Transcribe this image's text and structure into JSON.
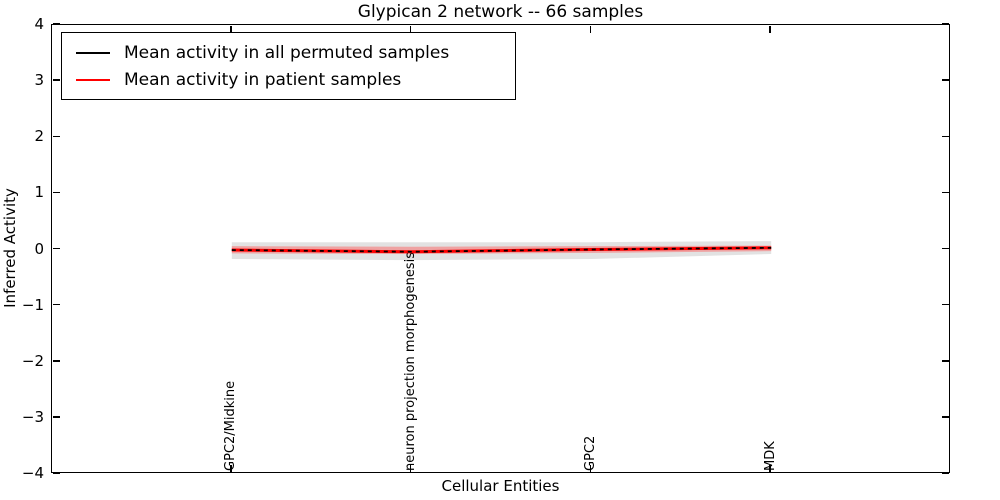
{
  "chart_data": {
    "type": "line",
    "title": "Glypican 2 network -- 66 samples",
    "xlabel": "Cellular Entities",
    "ylabel": "Inferred Activity",
    "ylim": [
      -4,
      4
    ],
    "xlim": [
      -1,
      4
    ],
    "yticks": [
      4,
      3,
      2,
      1,
      0,
      -1,
      -2,
      -3,
      -4
    ],
    "ytick_labels": [
      "4",
      "3",
      "2",
      "1",
      "0",
      "−1",
      "−2",
      "−3",
      "−4"
    ],
    "categories": [
      "GPC2/Midkine",
      "neuron projection morphogenesis",
      "GPC2",
      "MDK"
    ],
    "grid": false,
    "legend": {
      "position": "upper left",
      "border_color": "#000000"
    },
    "series": [
      {
        "name": "Mean activity in all permuted samples",
        "color": "#000000",
        "dash_on_plot": "4 4",
        "values": [
          -0.01,
          -0.04,
          0.0,
          0.03
        ],
        "band": {
          "color": "#bfbfbf",
          "opacity": 0.45,
          "upper": [
            0.13,
            0.13,
            0.13,
            0.15
          ],
          "lower": [
            -0.17,
            -0.19,
            -0.17,
            -0.08
          ]
        }
      },
      {
        "name": "Mean activity in patient samples",
        "color": "#ff0000",
        "values": [
          -0.01,
          -0.04,
          0.0,
          0.03
        ],
        "band": {
          "color": "#ff5555",
          "opacity": 0.45,
          "upper": [
            0.06,
            0.05,
            0.06,
            0.07
          ],
          "lower": [
            -0.07,
            -0.08,
            -0.06,
            -0.03
          ]
        }
      }
    ]
  }
}
